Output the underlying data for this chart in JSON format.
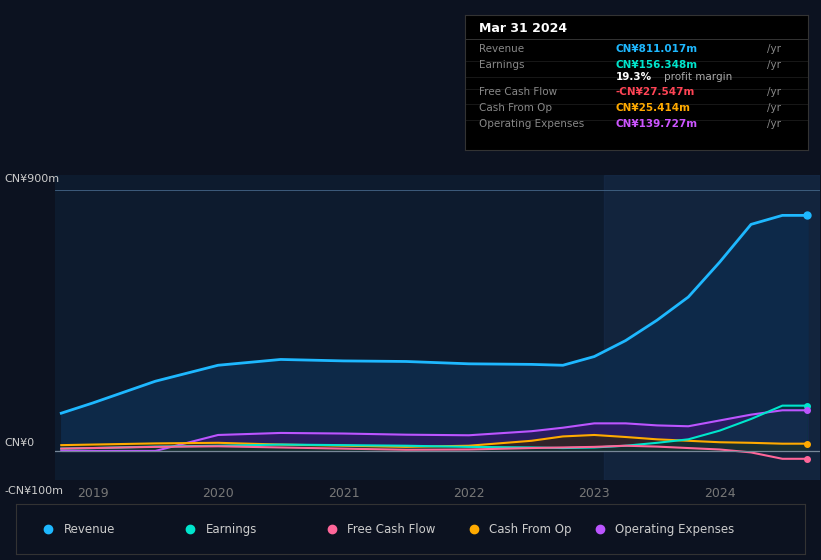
{
  "bg_color": "#0c1220",
  "chart_bg": "#0d1b2e",
  "title": "Mar 31 2024",
  "tooltip": {
    "Revenue": {
      "value": "CN¥811.017m",
      "color": "#1eb8ff"
    },
    "Earnings": {
      "value": "CN¥156.348m",
      "color": "#00e5cc"
    },
    "profit_margin": "19.3%",
    "Free Cash Flow": {
      "value": "-CN¥27.547m",
      "color": "#ff4455"
    },
    "Cash From Op": {
      "value": "CN¥25.414m",
      "color": "#ffaa00"
    },
    "Operating Expenses": {
      "value": "CN¥139.727m",
      "color": "#cc55ff"
    }
  },
  "ylim": [
    -100,
    950
  ],
  "xlim_start": 2018.7,
  "xlim_end": 2024.8,
  "xticks": [
    2019,
    2020,
    2021,
    2022,
    2023,
    2024
  ],
  "series": {
    "Revenue": {
      "color": "#1eb8ff",
      "fill_color": "#0d2a4a",
      "x": [
        2018.75,
        2019.0,
        2019.5,
        2020.0,
        2020.5,
        2021.0,
        2021.5,
        2022.0,
        2022.5,
        2022.75,
        2023.0,
        2023.25,
        2023.5,
        2023.75,
        2024.0,
        2024.25,
        2024.5,
        2024.7
      ],
      "y": [
        130,
        165,
        240,
        295,
        315,
        310,
        308,
        300,
        298,
        295,
        325,
        380,
        450,
        530,
        650,
        780,
        811,
        811
      ]
    },
    "Earnings": {
      "color": "#00e5cc",
      "x": [
        2018.75,
        2019.0,
        2019.5,
        2020.0,
        2020.5,
        2021.0,
        2021.5,
        2022.0,
        2022.5,
        2022.75,
        2023.0,
        2023.25,
        2023.5,
        2023.75,
        2024.0,
        2024.25,
        2024.5,
        2024.7
      ],
      "y": [
        8,
        10,
        15,
        18,
        22,
        20,
        18,
        14,
        12,
        10,
        12,
        18,
        28,
        40,
        70,
        110,
        156,
        156
      ]
    },
    "Free Cash Flow": {
      "color": "#ff6699",
      "x": [
        2018.75,
        2019.0,
        2019.5,
        2020.0,
        2020.5,
        2021.0,
        2021.5,
        2022.0,
        2022.5,
        2022.75,
        2023.0,
        2023.25,
        2023.5,
        2023.75,
        2024.0,
        2024.25,
        2024.5,
        2024.7
      ],
      "y": [
        8,
        10,
        14,
        16,
        12,
        8,
        4,
        5,
        10,
        12,
        14,
        18,
        15,
        10,
        5,
        -5,
        -27,
        -27
      ]
    },
    "Cash From Op": {
      "color": "#ffaa00",
      "x": [
        2018.75,
        2019.0,
        2019.5,
        2020.0,
        2020.5,
        2021.0,
        2021.5,
        2022.0,
        2022.5,
        2022.75,
        2023.0,
        2023.25,
        2023.5,
        2023.75,
        2024.0,
        2024.25,
        2024.5,
        2024.7
      ],
      "y": [
        20,
        22,
        26,
        28,
        22,
        18,
        14,
        18,
        35,
        50,
        55,
        48,
        40,
        35,
        30,
        28,
        25,
        25
      ]
    },
    "Operating Expenses": {
      "color": "#bb55ff",
      "x": [
        2018.75,
        2019.0,
        2019.5,
        2020.0,
        2020.5,
        2021.0,
        2021.5,
        2022.0,
        2022.5,
        2022.75,
        2023.0,
        2023.25,
        2023.5,
        2023.75,
        2024.0,
        2024.25,
        2024.5,
        2024.7
      ],
      "y": [
        0,
        0,
        0,
        55,
        62,
        60,
        56,
        54,
        68,
        80,
        95,
        95,
        88,
        85,
        105,
        125,
        140,
        140
      ]
    }
  },
  "legend": [
    {
      "label": "Revenue",
      "color": "#1eb8ff"
    },
    {
      "label": "Earnings",
      "color": "#00e5cc"
    },
    {
      "label": "Free Cash Flow",
      "color": "#ff6699"
    },
    {
      "label": "Cash From Op",
      "color": "#ffaa00"
    },
    {
      "label": "Operating Expenses",
      "color": "#bb55ff"
    }
  ],
  "highlight_x_start": 2023.08,
  "highlight_x_end": 2024.8
}
